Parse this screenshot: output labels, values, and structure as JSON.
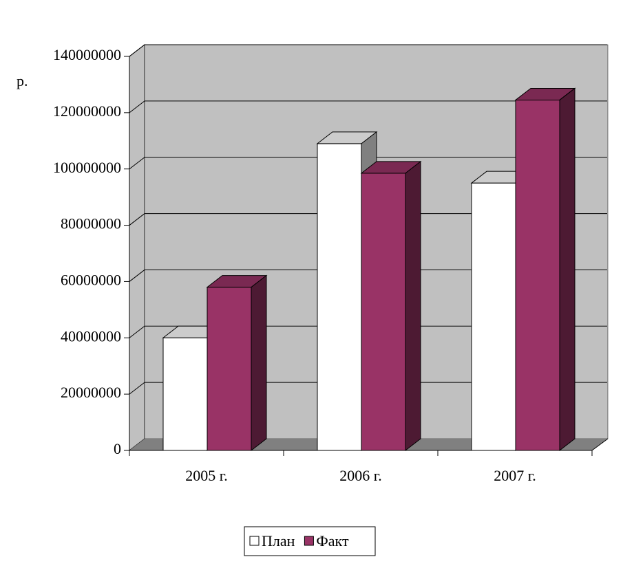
{
  "chart_data": {
    "type": "bar3d",
    "y_label": "р.",
    "categories": [
      "2005 г.",
      "2006 г.",
      "2007 г."
    ],
    "series": [
      {
        "name": "План",
        "color": "#ffffff",
        "values": [
          40000000,
          109000000,
          95000000
        ]
      },
      {
        "name": "Факт",
        "color": "#993366",
        "values": [
          58000000,
          98500000,
          124500000
        ]
      }
    ],
    "ylim": [
      0,
      140000000
    ],
    "yticks": [
      0,
      20000000,
      40000000,
      60000000,
      80000000,
      100000000,
      120000000,
      140000000
    ],
    "grid": true,
    "legend": "bottom"
  }
}
